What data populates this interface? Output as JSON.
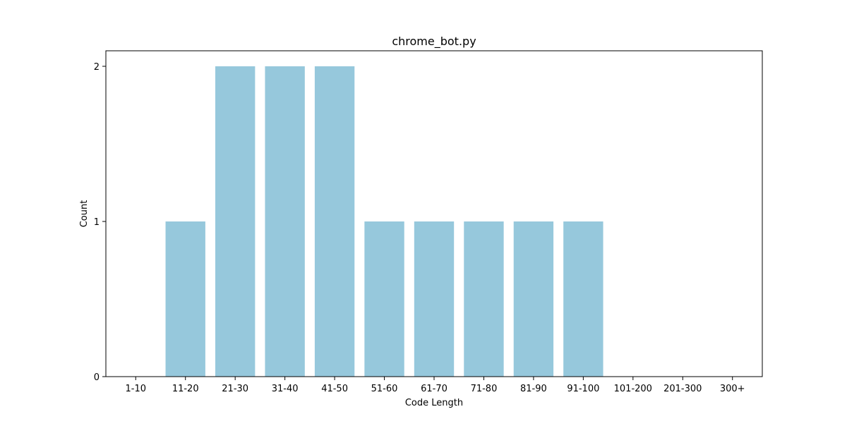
{
  "chart_data": {
    "type": "bar",
    "title": "chrome_bot.py",
    "xlabel": "Code Length",
    "ylabel": "Count",
    "categories": [
      "1-10",
      "11-20",
      "21-30",
      "31-40",
      "41-50",
      "51-60",
      "61-70",
      "71-80",
      "81-90",
      "91-100",
      "101-200",
      "201-300",
      "300+"
    ],
    "values": [
      0,
      1,
      2,
      2,
      2,
      1,
      1,
      1,
      1,
      1,
      0,
      0,
      0
    ],
    "ylim": [
      0,
      2.1
    ],
    "yticks": [
      0,
      1,
      2
    ],
    "ytick_labels": [
      "0",
      "1",
      "2"
    ],
    "grid": false,
    "bar_color": "#96c8dc"
  }
}
